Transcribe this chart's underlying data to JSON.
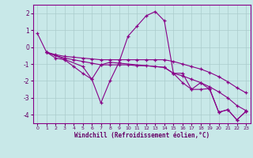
{
  "xlabel": "Windchill (Refroidissement éolien,°C)",
  "background_color": "#c8e8e8",
  "line_color": "#880088",
  "xlim": [
    -0.5,
    23.5
  ],
  "ylim": [
    -4.5,
    2.5
  ],
  "yticks": [
    -4,
    -3,
    -2,
    -1,
    0,
    1,
    2
  ],
  "xticks": [
    0,
    1,
    2,
    3,
    4,
    5,
    6,
    7,
    8,
    9,
    10,
    11,
    12,
    13,
    14,
    15,
    16,
    17,
    18,
    19,
    20,
    21,
    22,
    23
  ],
  "lines": [
    {
      "x": [
        0,
        1,
        2,
        3,
        4,
        5,
        6,
        7,
        8,
        9,
        10,
        11,
        12,
        13,
        14,
        15,
        16,
        17,
        18,
        19,
        20,
        21,
        22,
        23
      ],
      "y": [
        0.8,
        -0.3,
        -0.65,
        -0.75,
        -1.15,
        -1.55,
        -1.9,
        -3.3,
        -2.0,
        -0.9,
        0.65,
        1.25,
        1.85,
        2.1,
        1.55,
        -1.55,
        -2.1,
        -2.5,
        -2.1,
        -2.5,
        -3.85,
        -3.7,
        -4.3,
        -3.8
      ]
    },
    {
      "x": [
        1,
        2,
        3,
        4,
        5,
        6,
        7,
        8,
        9,
        10,
        11,
        12,
        13,
        14,
        15,
        16,
        17,
        18,
        19,
        20,
        21,
        22,
        23
      ],
      "y": [
        -0.3,
        -0.45,
        -0.55,
        -0.6,
        -0.65,
        -0.7,
        -0.75,
        -0.75,
        -0.75,
        -0.75,
        -0.75,
        -0.75,
        -0.75,
        -0.75,
        -0.85,
        -1.0,
        -1.15,
        -1.3,
        -1.5,
        -1.75,
        -2.05,
        -2.4,
        -2.7
      ]
    },
    {
      "x": [
        1,
        2,
        3,
        4,
        5,
        6,
        7,
        8,
        9,
        10,
        11,
        12,
        13,
        14,
        15,
        16,
        17,
        18,
        19,
        20,
        21,
        22,
        23
      ],
      "y": [
        -0.3,
        -0.5,
        -0.65,
        -0.75,
        -0.85,
        -0.95,
        -1.05,
        -1.05,
        -1.05,
        -1.05,
        -1.1,
        -1.1,
        -1.15,
        -1.2,
        -1.55,
        -1.7,
        -1.9,
        -2.1,
        -2.35,
        -2.65,
        -3.0,
        -3.45,
        -3.75
      ]
    },
    {
      "x": [
        1,
        5,
        6,
        7,
        8,
        14,
        15,
        16,
        17,
        18,
        19,
        20,
        21,
        22,
        23
      ],
      "y": [
        -0.3,
        -1.15,
        -1.9,
        -1.05,
        -0.9,
        -1.2,
        -1.55,
        -1.55,
        -2.5,
        -2.5,
        -2.45,
        -3.85,
        -3.7,
        -4.3,
        -3.8
      ]
    }
  ]
}
